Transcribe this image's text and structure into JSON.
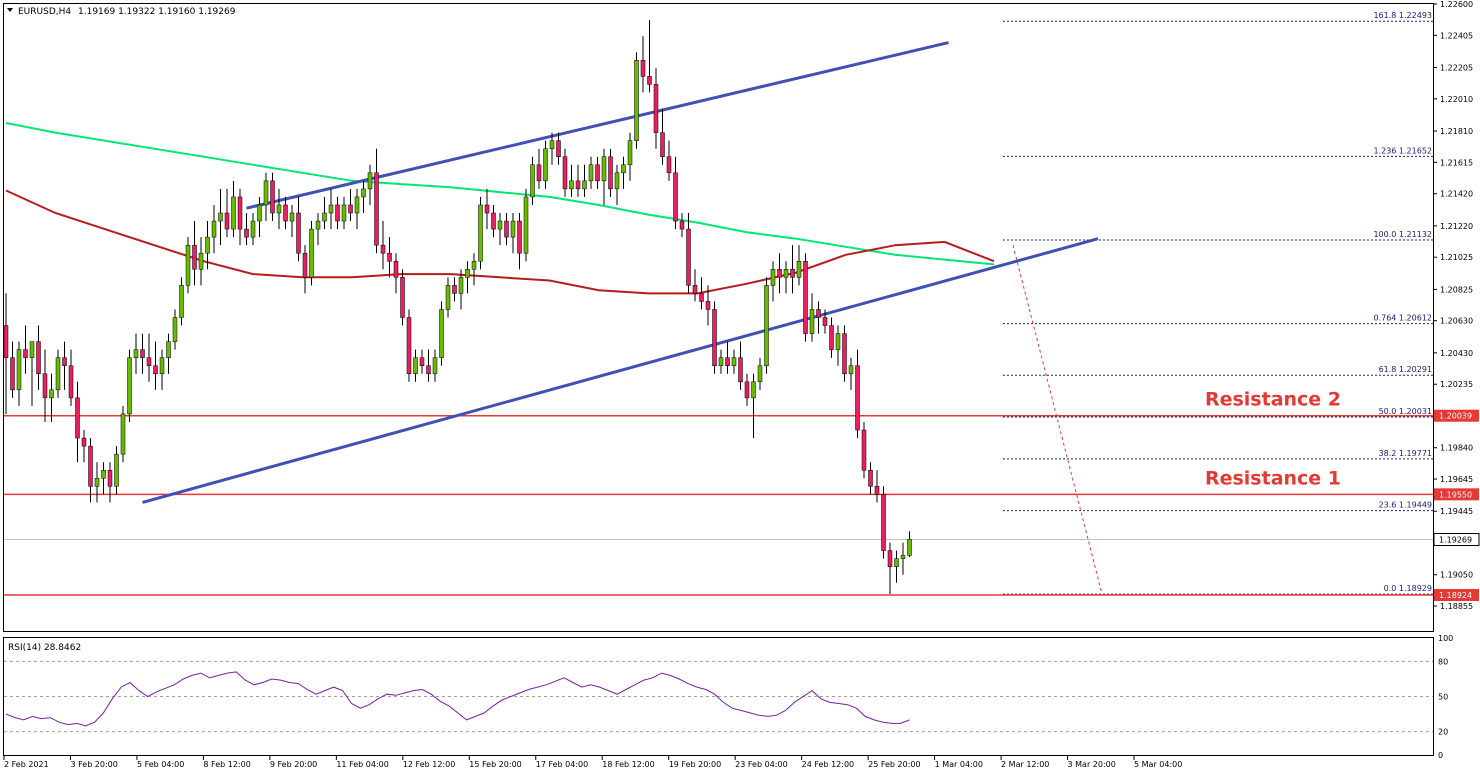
{
  "header": {
    "symbol_label": "EURUSD,H4",
    "ohlc_label": "1.19169 1.19322 1.19160 1.19269"
  },
  "chart_data": {
    "type": "candlestick",
    "symbol": "EURUSD",
    "timeframe": "H4",
    "ohlc": {
      "open": 1.19169,
      "high": 1.19322,
      "low": 1.1916,
      "close": 1.19269
    },
    "price_axis": {
      "range": [
        1.187,
        1.226
      ],
      "ticks": [
        "1.22600",
        "1.22405",
        "1.22205",
        "1.22010",
        "1.21810",
        "1.21615",
        "1.21420",
        "1.21220",
        "1.21025",
        "1.20825",
        "1.20630",
        "1.20430",
        "1.20235",
        "1.19840",
        "1.19645",
        "1.19445",
        "1.19050",
        "1.18855"
      ]
    },
    "time_axis": {
      "labels": [
        "2 Feb 2021",
        "3 Feb 20:00",
        "5 Feb 04:00",
        "8 Feb 12:00",
        "9 Feb 20:00",
        "11 Feb 04:00",
        "12 Feb 12:00",
        "15 Feb 20:00",
        "17 Feb 04:00",
        "18 Feb 12:00",
        "19 Feb 20:00",
        "23 Feb 04:00",
        "24 Feb 12:00",
        "25 Feb 20:00",
        "1 Mar 04:00",
        "2 Mar 12:00",
        "3 Mar 20:00",
        "5 Mar 04:00"
      ]
    },
    "candles": [
      [
        1.206,
        1.208,
        1.2005,
        1.204
      ],
      [
        1.204,
        1.205,
        1.2015,
        1.202
      ],
      [
        1.202,
        1.205,
        1.201,
        1.2045
      ],
      [
        1.2045,
        1.206,
        1.203,
        1.204
      ],
      [
        1.204,
        1.205,
        1.201,
        1.205
      ],
      [
        1.205,
        1.206,
        1.202,
        1.203
      ],
      [
        1.203,
        1.2045,
        1.2,
        1.2015
      ],
      [
        1.2015,
        1.203,
        1.2,
        1.202
      ],
      [
        1.202,
        1.2045,
        1.2015,
        1.204
      ],
      [
        1.204,
        1.205,
        1.202,
        1.2035
      ],
      [
        1.2035,
        1.2045,
        1.201,
        1.2015
      ],
      [
        1.2015,
        1.2025,
        1.1975,
        1.199
      ],
      [
        1.199,
        1.1995,
        1.1975,
        1.1985
      ],
      [
        1.1985,
        1.199,
        1.195,
        1.196
      ],
      [
        1.196,
        1.1975,
        1.195,
        1.1965
      ],
      [
        1.1965,
        1.1975,
        1.1955,
        1.197
      ],
      [
        1.197,
        1.1975,
        1.195,
        1.196
      ],
      [
        1.196,
        1.1985,
        1.1955,
        1.198
      ],
      [
        1.198,
        1.201,
        1.1975,
        1.2005
      ],
      [
        1.2005,
        1.2045,
        1.2,
        1.204
      ],
      [
        1.204,
        1.2055,
        1.203,
        1.2045
      ],
      [
        1.2045,
        1.2055,
        1.203,
        1.204
      ],
      [
        1.204,
        1.2055,
        1.2025,
        1.2035
      ],
      [
        1.2035,
        1.205,
        1.202,
        1.203
      ],
      [
        1.203,
        1.2045,
        1.202,
        1.204
      ],
      [
        1.204,
        1.2055,
        1.203,
        1.205
      ],
      [
        1.205,
        1.207,
        1.2045,
        1.2065
      ],
      [
        1.2065,
        1.209,
        1.206,
        1.2085
      ],
      [
        1.2085,
        1.2115,
        1.208,
        1.211
      ],
      [
        1.211,
        1.2125,
        1.2085,
        1.2095
      ],
      [
        1.2095,
        1.2115,
        1.2085,
        1.2105
      ],
      [
        1.2105,
        1.2125,
        1.2095,
        1.2115
      ],
      [
        1.2115,
        1.2135,
        1.2105,
        1.2125
      ],
      [
        1.2125,
        1.2145,
        1.211,
        1.213
      ],
      [
        1.213,
        1.2145,
        1.2115,
        1.212
      ],
      [
        1.212,
        1.215,
        1.2115,
        1.214
      ],
      [
        1.214,
        1.2145,
        1.211,
        1.212
      ],
      [
        1.212,
        1.213,
        1.211,
        1.2115
      ],
      [
        1.2115,
        1.213,
        1.211,
        1.2125
      ],
      [
        1.2125,
        1.214,
        1.2115,
        1.2135
      ],
      [
        1.2135,
        1.2155,
        1.2125,
        1.215
      ],
      [
        1.215,
        1.2155,
        1.2125,
        1.213
      ],
      [
        1.213,
        1.2145,
        1.212,
        1.2135
      ],
      [
        1.2135,
        1.214,
        1.212,
        1.2125
      ],
      [
        1.2125,
        1.2135,
        1.2115,
        1.213
      ],
      [
        1.213,
        1.214,
        1.21,
        1.2105
      ],
      [
        1.2105,
        1.211,
        1.208,
        1.209
      ],
      [
        1.209,
        1.2125,
        1.2085,
        1.212
      ],
      [
        1.212,
        1.213,
        1.211,
        1.2125
      ],
      [
        1.2125,
        1.214,
        1.212,
        1.213
      ],
      [
        1.213,
        1.2145,
        1.212,
        1.2135
      ],
      [
        1.2135,
        1.214,
        1.212,
        1.2125
      ],
      [
        1.2125,
        1.214,
        1.212,
        1.2135
      ],
      [
        1.2135,
        1.2145,
        1.2125,
        1.213
      ],
      [
        1.213,
        1.2145,
        1.212,
        1.214
      ],
      [
        1.214,
        1.215,
        1.213,
        1.2145
      ],
      [
        1.2145,
        1.216,
        1.2135,
        1.2155
      ],
      [
        1.2155,
        1.217,
        1.2105,
        1.211
      ],
      [
        1.211,
        1.2125,
        1.2095,
        1.2105
      ],
      [
        1.2105,
        1.2115,
        1.209,
        1.21
      ],
      [
        1.21,
        1.2105,
        1.208,
        1.209
      ],
      [
        1.209,
        1.2095,
        1.206,
        1.2065
      ],
      [
        1.2065,
        1.207,
        1.2025,
        1.203
      ],
      [
        1.203,
        1.2045,
        1.2025,
        1.204
      ],
      [
        1.204,
        1.2045,
        1.203,
        1.2035
      ],
      [
        1.2035,
        1.2045,
        1.2025,
        1.203
      ],
      [
        1.203,
        1.2045,
        1.2025,
        1.204
      ],
      [
        1.204,
        1.2075,
        1.2035,
        1.207
      ],
      [
        1.207,
        1.209,
        1.2065,
        1.2085
      ],
      [
        1.2085,
        1.209,
        1.2075,
        1.208
      ],
      [
        1.208,
        1.2095,
        1.207,
        1.209
      ],
      [
        1.209,
        1.21,
        1.208,
        1.2095
      ],
      [
        1.2095,
        1.2105,
        1.2085,
        1.21
      ],
      [
        1.21,
        1.214,
        1.2095,
        1.2135
      ],
      [
        1.2135,
        1.2145,
        1.212,
        1.213
      ],
      [
        1.213,
        1.2135,
        1.2115,
        1.212
      ],
      [
        1.212,
        1.213,
        1.211,
        1.2125
      ],
      [
        1.2125,
        1.213,
        1.211,
        1.2115
      ],
      [
        1.2115,
        1.213,
        1.2105,
        1.2125
      ],
      [
        1.2125,
        1.213,
        1.2095,
        1.2105
      ],
      [
        1.2105,
        1.2145,
        1.21,
        1.214
      ],
      [
        1.214,
        1.2165,
        1.2135,
        1.216
      ],
      [
        1.216,
        1.217,
        1.2145,
        1.215
      ],
      [
        1.215,
        1.2175,
        1.2145,
        1.217
      ],
      [
        1.217,
        1.218,
        1.216,
        1.2175
      ],
      [
        1.2175,
        1.218,
        1.216,
        1.2165
      ],
      [
        1.2165,
        1.217,
        1.214,
        1.2145
      ],
      [
        1.2145,
        1.216,
        1.214,
        1.215
      ],
      [
        1.215,
        1.216,
        1.214,
        1.2145
      ],
      [
        1.2145,
        1.216,
        1.214,
        1.215
      ],
      [
        1.215,
        1.2165,
        1.2145,
        1.216
      ],
      [
        1.216,
        1.2165,
        1.2145,
        1.215
      ],
      [
        1.215,
        1.217,
        1.2135,
        1.2165
      ],
      [
        1.2165,
        1.217,
        1.214,
        1.2145
      ],
      [
        1.2145,
        1.216,
        1.2135,
        1.2155
      ],
      [
        1.2155,
        1.2165,
        1.2145,
        1.216
      ],
      [
        1.216,
        1.218,
        1.215,
        1.2175
      ],
      [
        1.2175,
        1.223,
        1.217,
        1.2225
      ],
      [
        1.2225,
        1.224,
        1.2205,
        1.2215
      ],
      [
        1.2215,
        1.225,
        1.2205,
        1.221
      ],
      [
        1.221,
        1.222,
        1.217,
        1.218
      ],
      [
        1.218,
        1.2195,
        1.216,
        1.2165
      ],
      [
        1.2165,
        1.2175,
        1.215,
        1.2155
      ],
      [
        1.2155,
        1.2165,
        1.212,
        1.2125
      ],
      [
        1.2125,
        1.213,
        1.2115,
        1.212
      ],
      [
        1.212,
        1.213,
        1.208,
        1.2085
      ],
      [
        1.2085,
        1.2095,
        1.2075,
        1.208
      ],
      [
        1.208,
        1.209,
        1.207,
        1.2075
      ],
      [
        1.2075,
        1.2085,
        1.206,
        1.207
      ],
      [
        1.207,
        1.2075,
        1.203,
        1.2035
      ],
      [
        1.2035,
        1.2045,
        1.203,
        1.204
      ],
      [
        1.204,
        1.205,
        1.203,
        1.2035
      ],
      [
        1.2035,
        1.2045,
        1.203,
        1.204
      ],
      [
        1.204,
        1.205,
        1.202,
        1.2025
      ],
      [
        1.2025,
        1.203,
        1.201,
        1.2015
      ],
      [
        1.2015,
        1.203,
        1.199,
        1.2025
      ],
      [
        1.2025,
        1.204,
        1.202,
        1.2035
      ],
      [
        1.2035,
        1.209,
        1.203,
        1.2085
      ],
      [
        1.2085,
        1.21,
        1.2075,
        1.2095
      ],
      [
        1.2095,
        1.2105,
        1.208,
        1.209
      ],
      [
        1.209,
        1.21,
        1.208,
        1.2095
      ],
      [
        1.2095,
        1.211,
        1.208,
        1.209
      ],
      [
        1.209,
        1.211,
        1.2085,
        1.21
      ],
      [
        1.21,
        1.2105,
        1.205,
        1.2055
      ],
      [
        1.2055,
        1.208,
        1.205,
        1.207
      ],
      [
        1.207,
        1.2075,
        1.2055,
        1.2065
      ],
      [
        1.2065,
        1.207,
        1.2055,
        1.206
      ],
      [
        1.206,
        1.2065,
        1.204,
        1.2045
      ],
      [
        1.2045,
        1.206,
        1.2035,
        1.2055
      ],
      [
        1.2055,
        1.206,
        1.2025,
        1.203
      ],
      [
        1.203,
        1.204,
        1.202,
        1.2035
      ],
      [
        1.2035,
        1.2045,
        1.199,
        1.1995
      ],
      [
        1.1995,
        1.2,
        1.1965,
        1.197
      ],
      [
        1.197,
        1.1975,
        1.1955,
        1.196
      ],
      [
        1.196,
        1.197,
        1.195,
        1.1955
      ],
      [
        1.1955,
        1.196,
        1.1915,
        1.192
      ],
      [
        1.192,
        1.1925,
        1.1893,
        1.191
      ],
      [
        1.191,
        1.192,
        1.19,
        1.1915
      ],
      [
        1.1915,
        1.1925,
        1.1905,
        1.1917
      ],
      [
        1.1917,
        1.1932,
        1.1916,
        1.1927
      ]
    ],
    "moving_averages": [
      {
        "color": "#00e676",
        "values": [
          1.2186,
          1.218,
          1.2175,
          1.217,
          1.2165,
          1.216,
          1.2155,
          1.215,
          1.2148,
          1.2146,
          1.2143,
          1.214,
          1.2135,
          1.2129,
          1.2124,
          1.2118,
          1.2114,
          1.2109,
          1.2104,
          1.2101,
          1.2098
        ]
      },
      {
        "color": "#b71c1c",
        "values": [
          1.2144,
          1.213,
          1.212,
          1.211,
          1.21,
          1.2092,
          1.209,
          1.209,
          1.2092,
          1.2092,
          1.209,
          1.2088,
          1.2082,
          1.208,
          1.208,
          1.2086,
          1.2093,
          1.2104,
          1.211,
          1.2112,
          1.21
        ]
      }
    ],
    "fibonacci_levels": [
      {
        "ratio_label": "161.8",
        "price": 1.22493,
        "price_label": "1.22493"
      },
      {
        "ratio_label": "1.236",
        "price": 1.21652,
        "price_label": "1.21652"
      },
      {
        "ratio_label": "100.0",
        "price": 1.21132,
        "price_label": "1.21132"
      },
      {
        "ratio_label": "0.764",
        "price": 1.20612,
        "price_label": "1.20612"
      },
      {
        "ratio_label": "61.8",
        "price": 1.20291,
        "price_label": "1.20291"
      },
      {
        "ratio_label": "50.0",
        "price": 1.20031,
        "price_label": "1.20031"
      },
      {
        "ratio_label": "38.2",
        "price": 1.19771,
        "price_label": "1.19771"
      },
      {
        "ratio_label": "23.6",
        "price": 1.19449,
        "price_label": "1.19449"
      },
      {
        "ratio_label": "0.0",
        "price": 1.18929,
        "price_label": "1.18929"
      }
    ],
    "horizontal_lines": [
      {
        "name": "resistance-2",
        "price": 1.20039,
        "price_label": "1.20039",
        "annotation": "Resistance 2",
        "color": "#e53935"
      },
      {
        "name": "resistance-1",
        "price": 1.1955,
        "price_label": "1.19550",
        "annotation": "Resistance 1",
        "color": "#e53935"
      },
      {
        "name": "support-low",
        "price": 1.18924,
        "price_label": "1.18924",
        "annotation": "",
        "color": "#e53935"
      }
    ],
    "current_price_label": "1.19269",
    "current_price": 1.19269,
    "trendlines": [
      {
        "name": "upper-channel-line",
        "from": {
          "bar": 37,
          "price": 1.2133
        },
        "to": {
          "bar": 145,
          "price": 1.2236
        }
      },
      {
        "name": "lower-channel-line",
        "from": {
          "bar": 21,
          "price": 1.195
        },
        "to": {
          "bar": 168,
          "price": 1.2114
        }
      }
    ],
    "rsi": {
      "label": "RSI(14) 28.8462",
      "range": [
        0,
        100
      ],
      "ticks": [
        "100",
        "80",
        "50",
        "20",
        "0"
      ],
      "levels": [
        80,
        50,
        20
      ],
      "values": [
        35,
        32,
        30,
        33,
        31,
        32,
        28,
        26,
        27,
        25,
        28,
        36,
        48,
        58,
        62,
        55,
        50,
        54,
        57,
        60,
        65,
        68,
        70,
        66,
        68,
        70,
        71,
        64,
        60,
        62,
        65,
        64,
        62,
        61,
        56,
        52,
        55,
        58,
        55,
        44,
        40,
        43,
        48,
        52,
        51,
        53,
        55,
        56,
        52,
        46,
        42,
        36,
        30,
        33,
        36,
        42,
        47,
        50,
        53,
        56,
        58,
        60,
        63,
        66,
        62,
        58,
        60,
        58,
        55,
        52,
        56,
        60,
        64,
        66,
        70,
        68,
        65,
        61,
        58,
        56,
        52,
        45,
        40,
        38,
        36,
        34,
        33,
        34,
        38,
        45,
        50,
        55,
        48,
        45,
        44,
        43,
        40,
        33,
        30,
        28,
        27,
        27,
        30
      ]
    }
  }
}
